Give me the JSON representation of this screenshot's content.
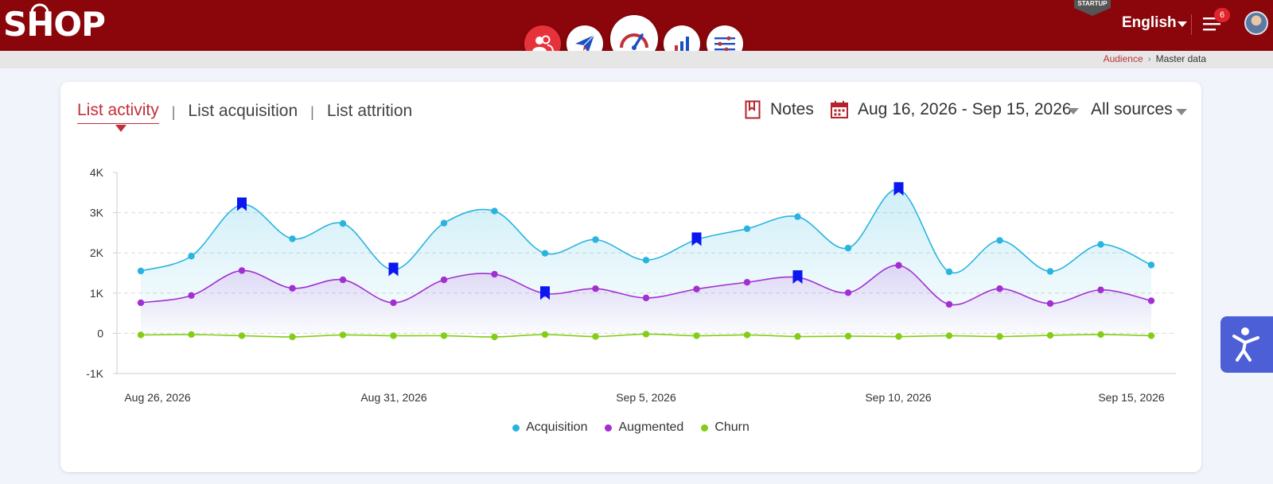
{
  "header": {
    "logo_text": "SHOP",
    "startup_badge": "STARTUP",
    "language": "English",
    "notifications_count": "6",
    "brand_color": "#8a060b"
  },
  "nav": [
    {
      "name": "audience",
      "icon": "users-icon",
      "active": true
    },
    {
      "name": "campaigns",
      "icon": "paper-plane-icon",
      "active": false
    },
    {
      "name": "dashboard",
      "icon": "gauge-icon",
      "active": false
    },
    {
      "name": "reports",
      "icon": "bar-chart-icon",
      "active": false
    },
    {
      "name": "settings",
      "icon": "sliders-icon",
      "active": false
    }
  ],
  "breadcrumb": {
    "parent": "Audience",
    "current": "Master data"
  },
  "tabs": {
    "active": "List activity",
    "second": "List acquisition",
    "third": "List attrition"
  },
  "tools": {
    "notes_label": "Notes",
    "date_range": "Aug 16, 2026 - Sep 15, 2026",
    "source": "All sources"
  },
  "chart_data": {
    "type": "area",
    "y_ticks": [
      "4K",
      "3K",
      "2K",
      "1K",
      "0",
      "-1K"
    ],
    "ylim": [
      -1000,
      4000
    ],
    "x_ticks": [
      "Aug 26, 2026",
      "Aug 31, 2026",
      "Sep 5, 2026",
      "Sep 10, 2026",
      "Sep 15, 2026"
    ],
    "x": [
      "Aug 26",
      "Aug 27",
      "Aug 28",
      "Aug 29",
      "Aug 30",
      "Aug 31",
      "Sep 1",
      "Sep 2",
      "Sep 3",
      "Sep 4",
      "Sep 5",
      "Sep 6",
      "Sep 7",
      "Sep 8",
      "Sep 9",
      "Sep 10",
      "Sep 11",
      "Sep 12",
      "Sep 13",
      "Sep 14",
      "Sep 15"
    ],
    "grid": true,
    "legend_position": "bottom",
    "series": [
      {
        "name": "Acquisition",
        "color": "#29b4e0",
        "values": [
          1550,
          1920,
          3200,
          2350,
          2730,
          1580,
          2740,
          3040,
          1990,
          2330,
          1820,
          2330,
          2600,
          2900,
          2120,
          3580,
          1530,
          2310,
          1540,
          2210,
          1700
        ]
      },
      {
        "name": "Augmented",
        "color": "#a22fd1",
        "values": [
          760,
          940,
          1560,
          1120,
          1330,
          760,
          1330,
          1470,
          990,
          1110,
          880,
          1100,
          1270,
          1390,
          1010,
          1690,
          720,
          1110,
          740,
          1080,
          810
        ]
      },
      {
        "name": "Churn",
        "color": "#84cc16",
        "values": [
          -40,
          -30,
          -60,
          -90,
          -40,
          -60,
          -60,
          -90,
          -30,
          -80,
          -20,
          -60,
          -40,
          -80,
          -70,
          -80,
          -60,
          -80,
          -50,
          -30,
          -60
        ]
      }
    ],
    "note_markers": [
      {
        "x": "Aug 28",
        "y": 3200
      },
      {
        "x": "Aug 31",
        "y": 1580
      },
      {
        "x": "Sep 3",
        "y": 990
      },
      {
        "x": "Sep 6",
        "y": 2330
      },
      {
        "x": "Sep 8",
        "y": 1390
      },
      {
        "x": "Sep 10",
        "y": 3580
      }
    ],
    "marker_color": "#0b16f0"
  }
}
